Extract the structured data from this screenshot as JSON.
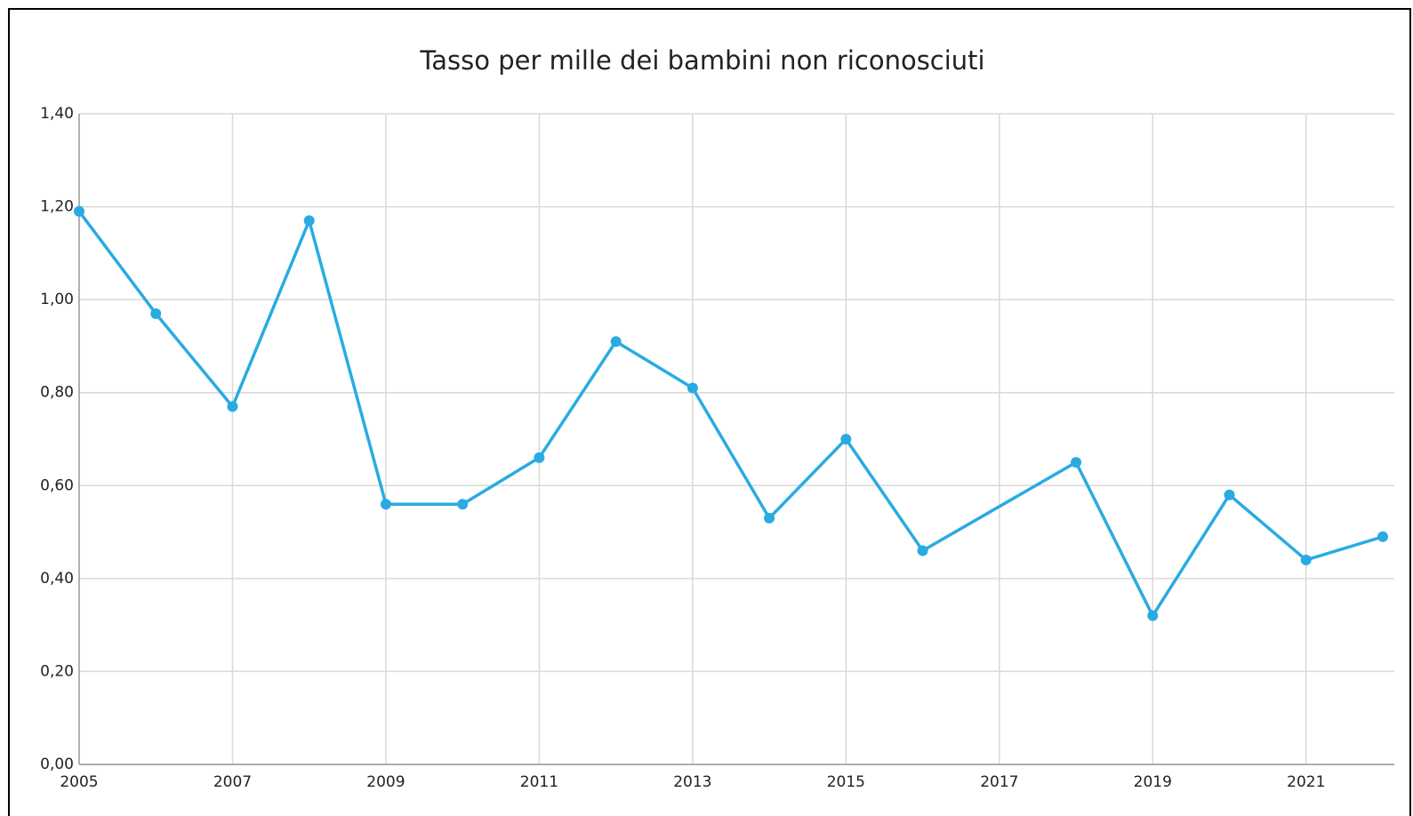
{
  "chart_data": {
    "type": "line",
    "title": "Tasso per mille dei bambini non riconosciuti",
    "x": [
      2005,
      2006,
      2007,
      2008,
      2009,
      2010,
      2011,
      2012,
      2013,
      2014,
      2015,
      2016,
      2018,
      2019,
      2020,
      2021,
      2022
    ],
    "series": [
      {
        "color": "#29abe2",
        "values": [
          1.19,
          0.97,
          0.77,
          1.17,
          0.56,
          0.56,
          0.66,
          0.91,
          0.81,
          0.53,
          0.7,
          0.46,
          0.65,
          0.32,
          0.58,
          0.44,
          0.49
        ]
      }
    ],
    "xlim": [
      2005,
      2022
    ],
    "xticks": [
      2005,
      2007,
      2009,
      2011,
      2013,
      2015,
      2017,
      2019,
      2021
    ],
    "ylim": [
      0,
      1.4
    ],
    "yticks": [
      {
        "value": 0,
        "label": "0,00"
      },
      {
        "value": 0.2,
        "label": "0,20"
      },
      {
        "value": 0.4,
        "label": "0,40"
      },
      {
        "value": 0.6,
        "label": "0,60"
      },
      {
        "value": 0.8,
        "label": "0,80"
      },
      {
        "value": 1.0,
        "label": "1,00"
      },
      {
        "value": 1.2,
        "label": "1,20"
      },
      {
        "value": 1.4,
        "label": "1,40"
      }
    ],
    "grid": true
  }
}
